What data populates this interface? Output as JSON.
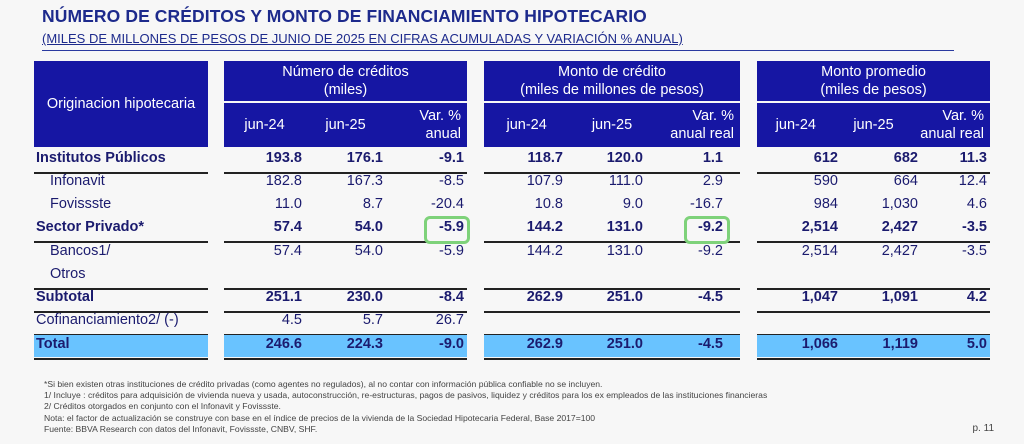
{
  "title": "NÚMERO DE CRÉDITOS Y MONTO DE FINANCIAMIENTO HIPOTECARIO",
  "subtitle": "(MILES DE MILLONES DE PESOS DE JUNIO DE 2025 EN CIFRAS ACUMULADAS Y VARIACIÓN % ANUAL)",
  "table": {
    "row_header": "Originacion hipotecaria",
    "groups": [
      {
        "title": "Número de créditos",
        "unit": "(miles)",
        "cols": [
          "jun-24",
          "jun-25",
          "Var. %",
          "anual"
        ]
      },
      {
        "title": "Monto de crédito",
        "unit": "(miles de millones de pesos)",
        "cols": [
          "jun-24",
          "jun-25",
          "Var. %",
          "anual real"
        ]
      },
      {
        "title": "Monto promedio",
        "unit": "(miles de pesos)",
        "cols": [
          "jun-24",
          "jun-25",
          "Var. %",
          "anual real"
        ]
      }
    ],
    "rows": [
      {
        "label": "Institutos Públicos",
        "bold": true,
        "indent": false,
        "values": [
          "193.8",
          "176.1",
          "-9.1",
          "118.7",
          "120.0",
          "1.1",
          "612",
          "682",
          "11.3"
        ]
      },
      {
        "label": "Infonavit",
        "bold": false,
        "indent": true,
        "values": [
          "182.8",
          "167.3",
          "-8.5",
          "107.9",
          "111.0",
          "2.9",
          "590",
          "664",
          "12.4"
        ]
      },
      {
        "label": "Fovissste",
        "bold": false,
        "indent": true,
        "values": [
          "11.0",
          "8.7",
          "-20.4",
          "10.8",
          "9.0",
          "-16.7",
          "984",
          "1,030",
          "4.6"
        ]
      },
      {
        "label": "Sector Privado*",
        "bold": true,
        "indent": false,
        "values": [
          "57.4",
          "54.0",
          "-5.9",
          "144.2",
          "131.0",
          "-9.2",
          "2,514",
          "2,427",
          "-3.5"
        ]
      },
      {
        "label": "Bancos1/",
        "bold": false,
        "indent": true,
        "values": [
          "57.4",
          "54.0",
          "-5.9",
          "144.2",
          "131.0",
          "-9.2",
          "2,514",
          "2,427",
          "-3.5"
        ]
      },
      {
        "label": "Otros",
        "bold": false,
        "indent": true,
        "values": [
          "",
          "",
          "",
          "",
          "",
          "",
          "",
          "",
          ""
        ]
      },
      {
        "label": "Subtotal",
        "bold": true,
        "indent": false,
        "values": [
          "251.1",
          "230.0",
          "-8.4",
          "262.9",
          "251.0",
          "-4.5",
          "1,047",
          "1,091",
          "4.2"
        ]
      },
      {
        "label": "Cofinanciamiento2/ (-)",
        "bold": false,
        "indent": false,
        "values": [
          "4.5",
          "5.7",
          "26.7",
          "",
          "",
          "",
          "",
          "",
          ""
        ]
      },
      {
        "label": "Total",
        "bold": true,
        "indent": false,
        "values": [
          "246.6",
          "224.3",
          "-9.0",
          "262.9",
          "251.0",
          "-4.5",
          "1,066",
          "1,119",
          "5.0"
        ]
      }
    ],
    "highlighted_cells": [
      "Sector Privado* / Número de créditos Var. % anual",
      "Sector Privado* / Monto de crédito Var. % anual real"
    ],
    "colors": {
      "header": "#1616a3",
      "total_row": "#69c3ff",
      "highlight": "#7ed27a"
    }
  },
  "notes": [
    "*Si bien existen otras instituciones de crédito privadas (como agentes no regulados), al no contar con información pública confiable no se incluyen.",
    "1/ Incluye : créditos para adquisición de vivienda nueva y usada, autoconstrucción, re-estructuras, pagos de pasivos, liquidez y créditos para los ex empleados de las instituciones financieras",
    "2/ Créditos otorgados en conjunto con el Infonavit y Fovissste.",
    "Nota: el factor de actualización se construye con base en el índice de precios de la vivienda de la Sociedad Hipotecaria Federal, Base 2017=100",
    "Fuente: BBVA Research con datos del Infonavit, Fovissste, CNBV, SHF."
  ],
  "page": "p. 11"
}
